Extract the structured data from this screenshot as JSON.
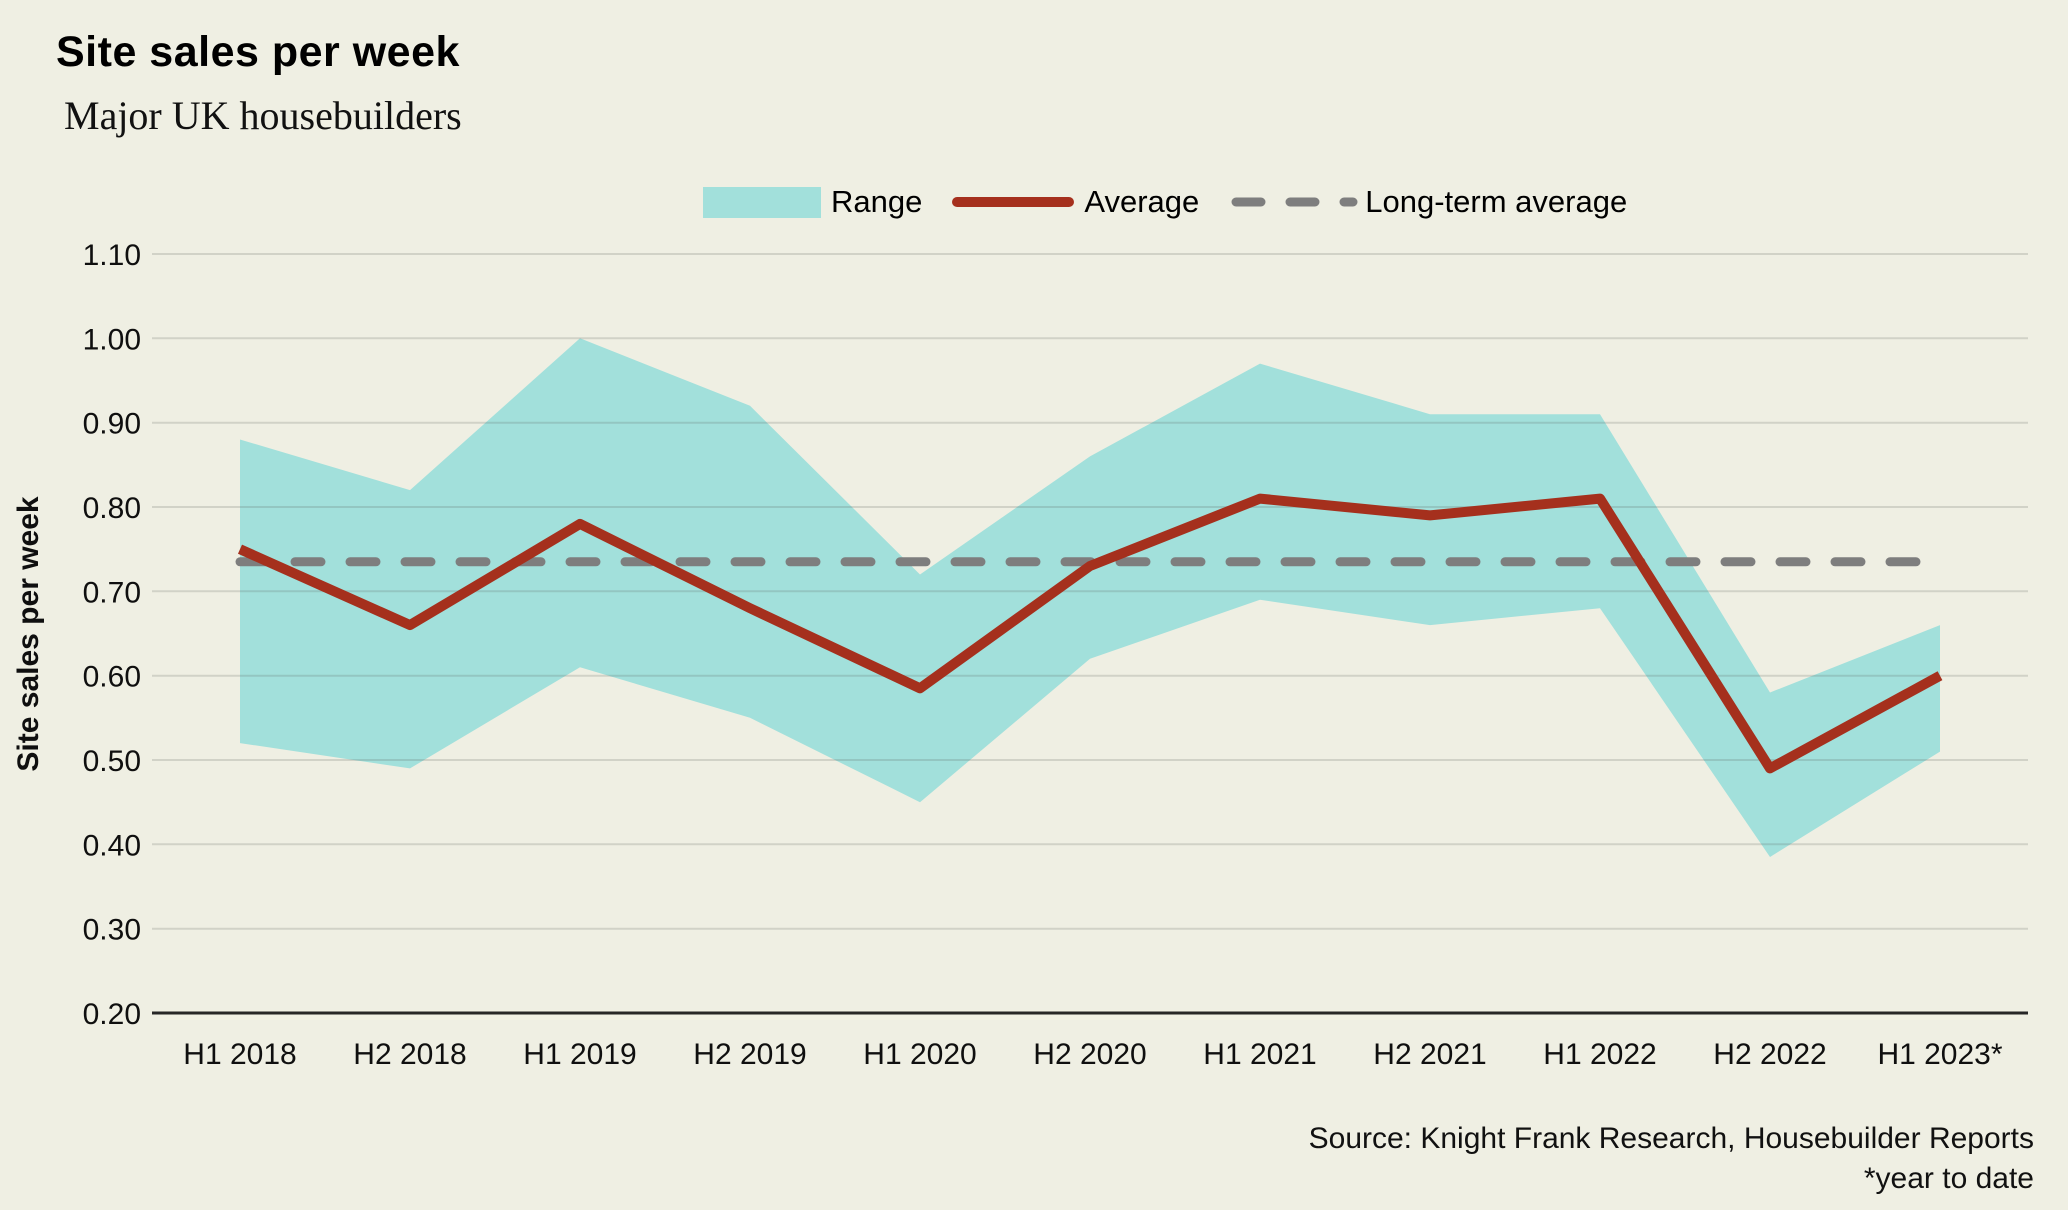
{
  "header": {
    "title": "Site sales per week",
    "subtitle": "Major UK housebuilders"
  },
  "legend": {
    "range_label": "Range",
    "average_label": "Average",
    "longterm_label": "Long-term average"
  },
  "footer": {
    "source": "Source: Knight Frank Research, Housebuilder Reports",
    "note": "*year to date"
  },
  "colors": {
    "background": "#efefe3",
    "band": "#a2e0db",
    "average": "#a5301d",
    "longterm": "#7e7e7e",
    "grid": "rgba(90,95,90,0.20)",
    "axis": "#262626",
    "text": "#0f0f0f"
  },
  "chart_data": {
    "type": "area",
    "title": "Site sales per week",
    "subtitle": "Major UK housebuilders",
    "categories": [
      "H1 2018",
      "H2 2018",
      "H1 2019",
      "H2 2019",
      "H1 2020",
      "H2 2020",
      "H1 2021",
      "H2 2021",
      "H1 2022",
      "H2 2022",
      "H1 2023*"
    ],
    "series": [
      {
        "name": "Range",
        "role": "band",
        "max": [
          0.88,
          0.82,
          1.0,
          0.92,
          0.72,
          0.86,
          0.97,
          0.91,
          0.91,
          0.58,
          0.66
        ],
        "min": [
          0.52,
          0.49,
          0.61,
          0.55,
          0.45,
          0.62,
          0.69,
          0.66,
          0.68,
          0.385,
          0.51
        ]
      },
      {
        "name": "Average",
        "role": "line",
        "values": [
          0.75,
          0.66,
          0.78,
          0.68,
          0.585,
          0.73,
          0.81,
          0.79,
          0.81,
          0.49,
          0.6
        ]
      },
      {
        "name": "Long-term average",
        "role": "reference",
        "value": 0.735
      }
    ],
    "xlabel": "",
    "ylabel": "Site sales per week",
    "ylim": [
      0.2,
      1.1
    ],
    "ytick_labels": [
      "1.10",
      "1.00",
      "0.90",
      "0.80",
      "0.70",
      "0.60",
      "0.50",
      "0.40",
      "0.30",
      "0.20"
    ],
    "grid": "horizontal",
    "legend_position": "top"
  }
}
